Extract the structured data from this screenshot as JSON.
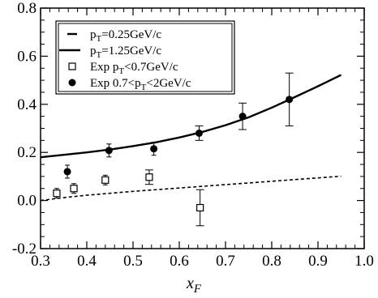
{
  "chart_data": {
    "type": "scatter",
    "title": "",
    "xlabel": "x",
    "xlabel_sub": "F",
    "ylabel": "",
    "xlim": [
      0.3,
      1.0
    ],
    "ylim": [
      -0.2,
      0.8
    ],
    "x_ticks": [
      0.3,
      0.4,
      0.5,
      0.6,
      0.7,
      0.8,
      0.9,
      1.0
    ],
    "x_tick_labels": [
      "0.3",
      "0.4",
      "0.5",
      "0.6",
      "0.7",
      "0.8",
      "0.9",
      "1.0"
    ],
    "y_ticks": [
      -0.2,
      0.0,
      0.2,
      0.4,
      0.6,
      0.8
    ],
    "y_tick_labels": [
      "-0.2",
      "0.0",
      "0.2",
      "0.4",
      "0.6",
      "0.8"
    ],
    "grid": false,
    "legend_position": "top-left",
    "legend": [
      {
        "key": "theory_low",
        "main": "p",
        "sub": "T",
        "rest": "=0.25GeV/c"
      },
      {
        "key": "theory_high",
        "main": "p",
        "sub": "T",
        "rest": "=1.25GeV/c"
      },
      {
        "key": "exp_low",
        "pre": "Exp p",
        "sub": "T",
        "rest": "<0.7GeV/c"
      },
      {
        "key": "exp_high",
        "pre": "Exp 0.7<p",
        "sub": "T",
        "rest": "<2GeV/c"
      }
    ],
    "series": [
      {
        "key": "theory_low",
        "kind": "line",
        "style": "dashed",
        "x": [
          0.3,
          0.35,
          0.4,
          0.45,
          0.5,
          0.55,
          0.6,
          0.65,
          0.7,
          0.75,
          0.8,
          0.85,
          0.9,
          0.95
        ],
        "y": [
          0.0,
          0.012,
          0.022,
          0.03,
          0.038,
          0.045,
          0.052,
          0.059,
          0.066,
          0.073,
          0.08,
          0.087,
          0.094,
          0.101
        ]
      },
      {
        "key": "theory_high",
        "kind": "line",
        "style": "solid",
        "x": [
          0.3,
          0.35,
          0.4,
          0.45,
          0.5,
          0.55,
          0.6,
          0.65,
          0.7,
          0.75,
          0.8,
          0.85,
          0.9,
          0.95
        ],
        "y": [
          0.18,
          0.19,
          0.2,
          0.212,
          0.226,
          0.242,
          0.262,
          0.285,
          0.313,
          0.346,
          0.386,
          0.43,
          0.475,
          0.522
        ]
      },
      {
        "key": "exp_low",
        "kind": "points",
        "marker": "open-square",
        "x": [
          0.335,
          0.372,
          0.44,
          0.535,
          0.645
        ],
        "y": [
          0.03,
          0.05,
          0.085,
          0.097,
          -0.03
        ],
        "err": [
          0.0,
          0.0,
          0.0,
          0.03,
          0.075
        ]
      },
      {
        "key": "exp_high",
        "kind": "points",
        "marker": "filled-circle",
        "x": [
          0.358,
          0.448,
          0.545,
          0.643,
          0.737,
          0.838
        ],
        "y": [
          0.12,
          0.208,
          0.215,
          0.28,
          0.35,
          0.42
        ],
        "err": [
          0.0,
          0.0,
          0.0,
          0.03,
          0.055,
          0.11
        ]
      }
    ]
  }
}
